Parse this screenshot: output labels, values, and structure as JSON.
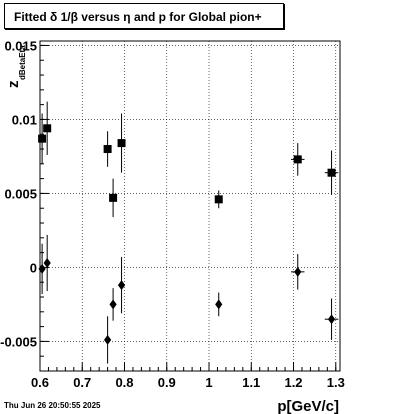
{
  "title": "Fitted δ 1/β versus η  and p for Global pion+",
  "footer": "Thu Jun 26 20:50:55 2025",
  "chart_data": {
    "type": "scatter",
    "xlabel": "p[GeV/c]",
    "ylabel_main": "z",
    "ylabel_sub": "dBetaEta",
    "xlim": [
      0.6,
      1.31
    ],
    "ylim": [
      -0.007,
      0.0153
    ],
    "grid": true,
    "x_ticks": [
      0.6,
      0.7,
      0.8,
      0.9,
      1.0,
      1.1,
      1.2,
      1.3
    ],
    "x_tick_labels": [
      "0.6",
      "0.7",
      "0.8",
      "0.9",
      "1",
      "1.1",
      "1.2",
      "1.3"
    ],
    "y_ticks": [
      -0.005,
      0,
      0.005,
      0.01,
      0.015
    ],
    "y_tick_labels": [
      "-0.005",
      "0",
      "0.005",
      "0.01",
      "0.015"
    ],
    "series": [
      {
        "marker": "square",
        "points": [
          {
            "x": 0.605,
            "y": 0.0087,
            "ey": 0.0017,
            "ex": 0.0
          },
          {
            "x": 0.617,
            "y": 0.0094,
            "ey": 0.0018,
            "ex": 0.0
          },
          {
            "x": 0.76,
            "y": 0.008,
            "ey": 0.0012,
            "ex": 0.0
          },
          {
            "x": 0.773,
            "y": 0.0047,
            "ey": 0.0013,
            "ex": 0.0
          },
          {
            "x": 0.793,
            "y": 0.0084,
            "ey": 0.002,
            "ex": 0.0
          },
          {
            "x": 1.023,
            "y": 0.0046,
            "ey": 0.0006,
            "ex": 0.0
          },
          {
            "x": 1.21,
            "y": 0.0073,
            "ey": 0.0011,
            "ex": 0.016
          },
          {
            "x": 1.29,
            "y": 0.0064,
            "ey": 0.0015,
            "ex": 0.016
          }
        ]
      },
      {
        "marker": "diamond",
        "points": [
          {
            "x": 0.605,
            "y": -0.0001,
            "ey": 0.0017,
            "ex": 0.0
          },
          {
            "x": 0.617,
            "y": 0.0003,
            "ey": 0.0019,
            "ex": 0.0
          },
          {
            "x": 0.76,
            "y": -0.0049,
            "ey": 0.0016,
            "ex": 0.0
          },
          {
            "x": 0.773,
            "y": -0.0025,
            "ey": 0.0011,
            "ex": 0.0
          },
          {
            "x": 0.793,
            "y": -0.0012,
            "ey": 0.0019,
            "ex": 0.0
          },
          {
            "x": 1.023,
            "y": -0.0025,
            "ey": 0.0008,
            "ex": 0.0
          },
          {
            "x": 1.21,
            "y": -0.0003,
            "ey": 0.0012,
            "ex": 0.016
          },
          {
            "x": 1.29,
            "y": -0.0035,
            "ey": 0.0014,
            "ex": 0.016
          }
        ]
      }
    ]
  }
}
